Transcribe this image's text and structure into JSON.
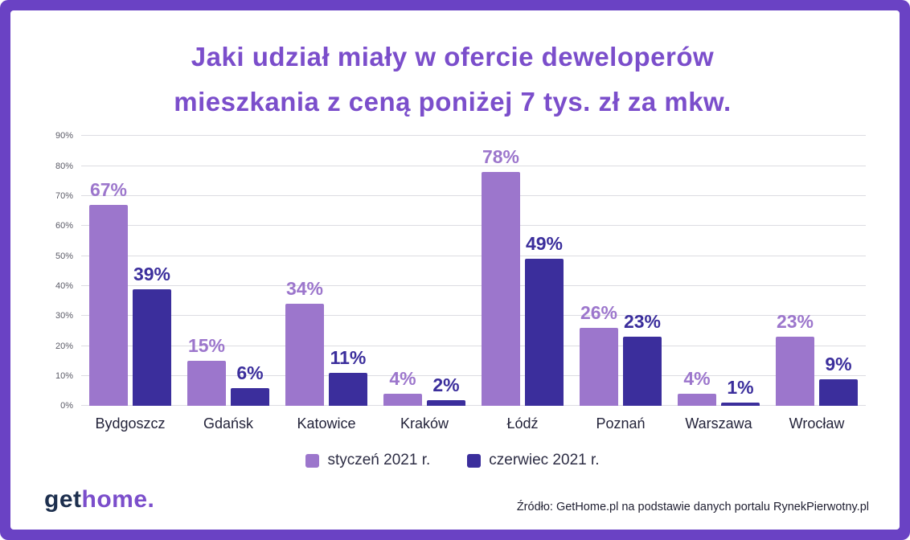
{
  "title": {
    "line1": "Jaki udział miały w ofercie deweloperów",
    "line2": "mieszkania z ceną poniżej 7 tys. zł za mkw."
  },
  "colors": {
    "frame": "#6a42c4",
    "title": "#7b4ecb",
    "series1": "#9c76cc",
    "series2": "#3b2e9c",
    "grid": "#dcdce2",
    "axis_text": "#5a5a66",
    "city_text": "#23233a",
    "legend_text": "#2d2d44",
    "logo_get": "#1d2f4e",
    "logo_home": "#7b4ecb",
    "source_text": "#1e1e30"
  },
  "chart_data": {
    "type": "bar",
    "title": "Jaki udział miały w ofercie deweloperów mieszkania z ceną poniżej 7 tys. zł za mkw.",
    "categories": [
      "Bydgoszcz",
      "Gdańsk",
      "Katowice",
      "Kraków",
      "Łódź",
      "Poznań",
      "Warszawa",
      "Wrocław"
    ],
    "series": [
      {
        "name": "styczeń 2021 r.",
        "color": "#9c76cc",
        "values": [
          67,
          15,
          34,
          4,
          78,
          26,
          4,
          23
        ]
      },
      {
        "name": "czerwiec 2021 r.",
        "color": "#3b2e9c",
        "values": [
          39,
          6,
          11,
          2,
          49,
          23,
          1,
          9
        ]
      }
    ],
    "ylim": [
      0,
      90
    ],
    "ytick_step": 10,
    "ytick_suffix": "%",
    "value_label_suffix": "%",
    "grid": true,
    "legend_position": "bottom",
    "xlabel": "",
    "ylabel": ""
  },
  "footer": {
    "logo": {
      "part1": "get",
      "part2": "home",
      "dot": "."
    },
    "source": "Źródło: GetHome.pl na podstawie danych portalu RynekPierwotny.pl"
  }
}
